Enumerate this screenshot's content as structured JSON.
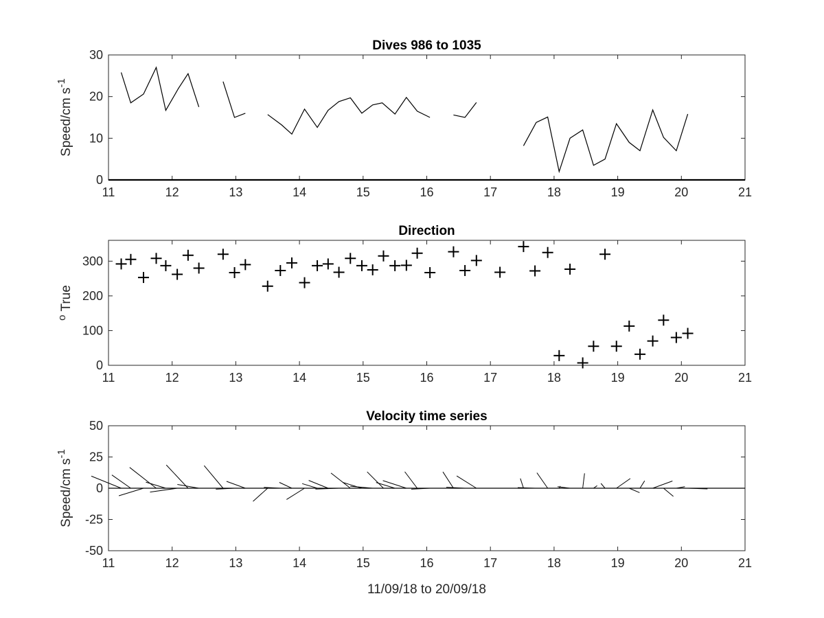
{
  "chart_data": [
    {
      "type": "line",
      "title": "Dives 986 to 1035",
      "ylabel_main": "Speed/cm s",
      "ylabel_sup": "-1",
      "xlabel": "",
      "xlim": [
        11,
        21
      ],
      "ylim": [
        0,
        30
      ],
      "xticks": [
        "11",
        "12",
        "13",
        "14",
        "15",
        "16",
        "17",
        "18",
        "19",
        "20",
        "21"
      ],
      "yticks": [
        "0",
        "10",
        "20",
        "30"
      ],
      "grid": false,
      "segments": [
        {
          "x": [
            11.2,
            11.35,
            11.55,
            11.75,
            11.9,
            12.1,
            12.25,
            12.42
          ],
          "y": [
            25.8,
            18.5,
            20.6,
            27.0,
            16.7,
            22.0,
            25.5,
            17.5
          ]
        },
        {
          "x": [
            12.8,
            12.98,
            13.15
          ],
          "y": [
            23.6,
            15.0,
            16.0
          ]
        },
        {
          "x": [
            13.5,
            13.72,
            13.88,
            14.08,
            14.28,
            14.45,
            14.62,
            14.8,
            14.98,
            15.15,
            15.3,
            15.5,
            15.68,
            15.85,
            16.05
          ],
          "y": [
            15.7,
            13.2,
            11.0,
            17.0,
            12.6,
            16.7,
            18.8,
            19.7,
            16.0,
            18.0,
            18.5,
            15.8,
            19.8,
            16.5,
            15.0
          ]
        },
        {
          "x": [
            16.42,
            16.6,
            16.78
          ],
          "y": [
            15.6,
            15.0,
            18.6
          ]
        },
        {
          "x": [
            17.52,
            17.72,
            17.9,
            18.08,
            18.25,
            18.45,
            18.62,
            18.8,
            18.98,
            19.18,
            19.35,
            19.55,
            19.72,
            19.92,
            20.1
          ],
          "y": [
            8.2,
            13.8,
            15.1,
            2.0,
            10.0,
            12.0,
            3.5,
            5.0,
            13.5,
            9.0,
            7.0,
            16.8,
            10.2,
            7.0,
            15.8
          ]
        }
      ]
    },
    {
      "type": "scatter",
      "title": "Direction",
      "ylabel_main": "True",
      "ylabel_sup": "o",
      "xlim": [
        11,
        21
      ],
      "ylim": [
        0,
        360
      ],
      "xticks": [
        "11",
        "12",
        "13",
        "14",
        "15",
        "16",
        "17",
        "18",
        "19",
        "20",
        "21"
      ],
      "yticks": [
        "0",
        "100",
        "200",
        "300"
      ],
      "grid": false,
      "marker": "+",
      "x": [
        11.2,
        11.35,
        11.55,
        11.75,
        11.9,
        12.08,
        12.25,
        12.42,
        12.8,
        12.98,
        13.15,
        13.5,
        13.7,
        13.88,
        14.08,
        14.28,
        14.45,
        14.62,
        14.8,
        14.98,
        15.15,
        15.32,
        15.5,
        15.68,
        15.85,
        16.05,
        16.42,
        16.6,
        16.78,
        17.15,
        17.52,
        17.7,
        17.9,
        18.08,
        18.25,
        18.45,
        18.62,
        18.8,
        18.98,
        19.18,
        19.35,
        19.55,
        19.72,
        19.92,
        20.1
      ],
      "y": [
        292,
        305,
        253,
        308,
        287,
        262,
        317,
        280,
        320,
        267,
        290,
        228,
        273,
        295,
        238,
        287,
        292,
        268,
        308,
        287,
        275,
        315,
        287,
        288,
        323,
        267,
        327,
        273,
        302,
        268,
        342,
        272,
        325,
        28,
        277,
        7,
        55,
        320,
        55,
        113,
        32,
        70,
        130,
        80,
        92
      ]
    },
    {
      "type": "quiver",
      "title": "Velocity time series",
      "ylabel_main": "Speed/cm s",
      "ylabel_sup": "-1",
      "xlabel": "11/09/18 to 20/09/18",
      "xlim": [
        11,
        21
      ],
      "ylim": [
        -50,
        50
      ],
      "xticks": [
        "11",
        "12",
        "13",
        "14",
        "15",
        "16",
        "17",
        "18",
        "19",
        "20",
        "21"
      ],
      "yticks": [
        "-50",
        "-25",
        "0",
        "25",
        "50"
      ],
      "grid": false,
      "baseline": 0,
      "x": [
        11.2,
        11.35,
        11.55,
        11.75,
        11.9,
        12.08,
        12.25,
        12.42,
        12.8,
        12.98,
        13.15,
        13.5,
        13.7,
        13.88,
        14.08,
        14.28,
        14.45,
        14.62,
        14.8,
        14.98,
        15.15,
        15.32,
        15.5,
        15.68,
        15.85,
        16.05,
        16.42,
        16.6,
        16.78,
        17.52,
        17.7,
        17.9,
        18.08,
        18.25,
        18.45,
        18.62,
        18.8,
        18.98,
        19.18,
        19.35,
        19.55,
        19.72,
        19.92,
        20.1
      ],
      "speed": [
        25.8,
        18.5,
        20.6,
        27.0,
        16.7,
        22.0,
        25.5,
        17.5,
        23.6,
        15.0,
        16.0,
        15.7,
        13.2,
        11.0,
        17.0,
        12.6,
        16.7,
        18.8,
        19.7,
        16.0,
        18.0,
        18.5,
        15.8,
        19.8,
        16.5,
        15.0,
        15.6,
        15.0,
        18.6,
        8.2,
        13.8,
        15.1,
        2.0,
        10.0,
        12.0,
        3.5,
        5.0,
        13.5,
        9.0,
        7.0,
        16.8,
        10.2,
        7.0,
        15.8
      ],
      "direction": [
        292,
        305,
        253,
        308,
        287,
        262,
        317,
        280,
        320,
        267,
        290,
        228,
        273,
        295,
        238,
        287,
        292,
        268,
        308,
        287,
        275,
        315,
        287,
        288,
        323,
        267,
        327,
        273,
        302,
        342,
        272,
        325,
        28,
        277,
        7,
        55,
        320,
        55,
        113,
        32,
        70,
        130,
        80,
        92
      ]
    }
  ]
}
